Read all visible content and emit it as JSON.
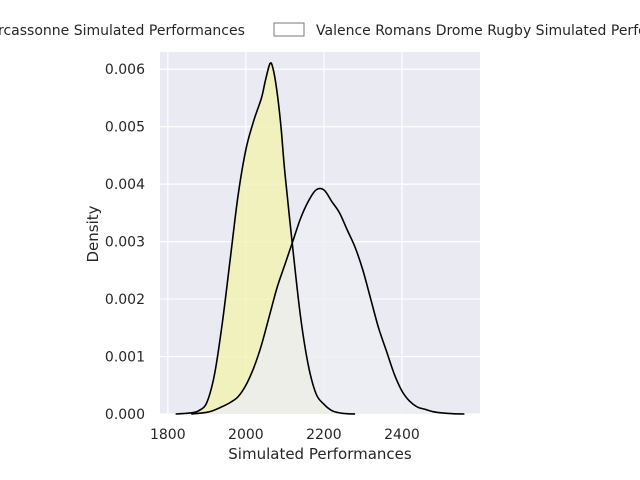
{
  "chart_data": {
    "type": "area",
    "style": "kde density",
    "xlabel": "Simulated Performances",
    "ylabel": "Density",
    "xlim": [
      1780,
      2600
    ],
    "ylim": [
      0,
      0.0063
    ],
    "x_ticks": [
      1800,
      2000,
      2200,
      2400
    ],
    "x_tick_labels": [
      "1800",
      "2000",
      "2200",
      "2400"
    ],
    "y_ticks": [
      0,
      0.001,
      0.002,
      0.003,
      0.004,
      0.005,
      0.006
    ],
    "y_tick_labels": [
      "0.000",
      "0.001",
      "0.002",
      "0.003",
      "0.004",
      "0.005",
      "0.006"
    ],
    "grid": true,
    "legend_position": "top, outside the axes",
    "background_color": "#eaeaf2",
    "grid_color": "#ffffff",
    "series": [
      {
        "name": "Carcassonne Simulated Performances",
        "legend_label": "rcassonne Simulated Performances",
        "fill_color": "#f2f2b0",
        "line_color": "#000000",
        "x": [
          1820,
          1860,
          1880,
          1900,
          1920,
          1940,
          1960,
          1980,
          2000,
          2020,
          2040,
          2050,
          2062,
          2070,
          2080,
          2090,
          2100,
          2120,
          2140,
          2160,
          2180,
          2200,
          2220,
          2240,
          2260,
          2280
        ],
        "y": [
          0,
          2e-05,
          6e-05,
          0.0002,
          0.0007,
          0.0016,
          0.0027,
          0.0038,
          0.0046,
          0.0051,
          0.0055,
          0.0058,
          0.0061,
          0.006,
          0.0056,
          0.005,
          0.0042,
          0.0029,
          0.0017,
          0.00085,
          0.00035,
          0.00017,
          6e-05,
          2e-05,
          5e-06,
          0
        ]
      },
      {
        "name": "Valence Romans Drome Rugby Simulated Performances",
        "legend_label": "Valence Romans Drome Rugby Simulated Perfo",
        "fill_color": "#eeeef4",
        "line_color": "#000000",
        "x": [
          1860,
          1900,
          1920,
          1940,
          1960,
          1980,
          2000,
          2020,
          2040,
          2060,
          2080,
          2100,
          2120,
          2140,
          2160,
          2180,
          2200,
          2220,
          2240,
          2260,
          2280,
          2300,
          2320,
          2340,
          2360,
          2380,
          2400,
          2420,
          2440,
          2460,
          2480,
          2500,
          2530,
          2560
        ],
        "y": [
          0,
          3e-05,
          7e-05,
          0.00013,
          0.0002,
          0.0003,
          0.0005,
          0.0008,
          0.0012,
          0.0017,
          0.0022,
          0.0026,
          0.003,
          0.0034,
          0.0037,
          0.0039,
          0.0039,
          0.0037,
          0.0035,
          0.0032,
          0.0029,
          0.0025,
          0.002,
          0.0015,
          0.0011,
          0.0007,
          0.0004,
          0.00022,
          0.00012,
          8e-05,
          4e-05,
          2e-05,
          5e-06,
          0
        ]
      }
    ]
  }
}
